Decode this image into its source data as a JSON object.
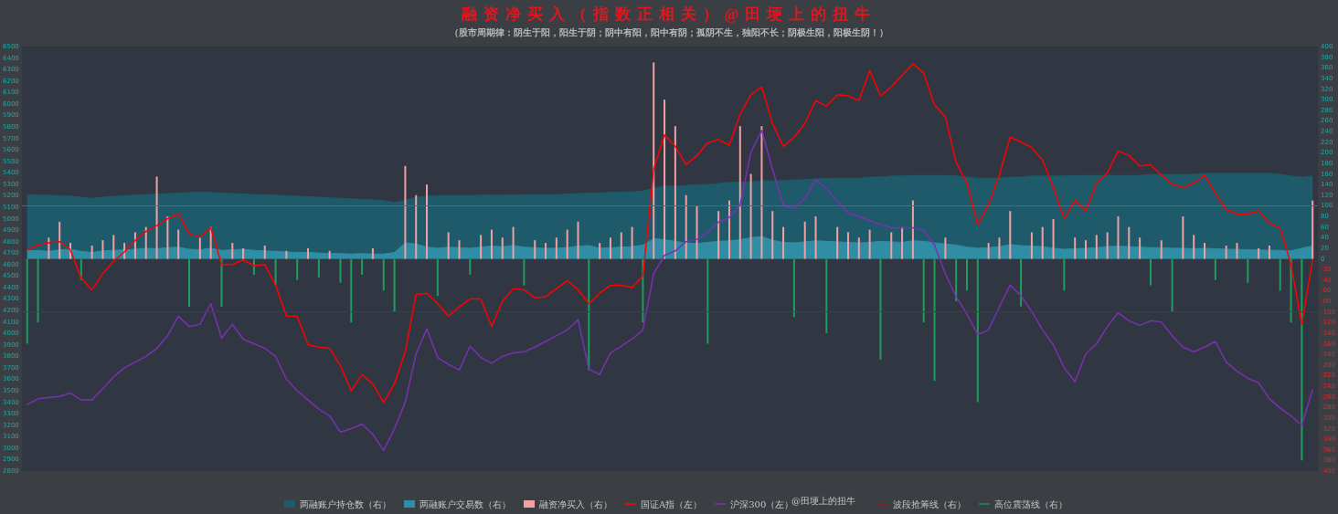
{
  "chart_data": {
    "type": "bar",
    "title": "融资净买入（指数正相关）@田埂上的扭牛",
    "subtitle": "（股市周期律：阴生于阳，阳生于阴；阴中有阳，阳中有阴；孤阴不生，独阳不长；阴极生阳，阳极生阴！）",
    "annotations": [
      "@田埂上的扭牛"
    ],
    "categories": [
      null,
      null,
      null,
      null,
      null,
      null,
      null,
      null,
      null,
      null,
      null,
      null,
      null,
      null,
      null,
      null,
      null,
      null,
      null,
      null,
      null,
      null,
      null,
      null,
      null,
      null,
      null,
      null,
      null,
      null,
      null,
      null,
      null,
      null,
      null,
      null,
      null,
      null,
      null,
      null,
      null,
      null,
      null,
      null,
      null,
      null,
      null,
      null,
      null,
      null,
      null,
      null,
      null,
      null,
      null,
      null,
      null,
      null,
      null,
      null,
      null,
      null,
      null,
      null,
      null,
      null,
      null,
      null,
      null,
      null,
      null,
      null,
      null,
      null,
      null,
      null,
      null,
      null,
      null,
      null,
      null,
      null,
      null,
      null,
      null,
      null,
      null,
      null,
      null,
      null,
      null,
      null,
      null,
      null,
      null,
      null,
      null,
      null,
      null,
      null,
      null,
      null,
      null,
      null,
      null,
      null,
      null,
      null,
      null,
      null,
      null,
      null,
      null,
      null,
      null,
      null,
      null,
      null,
      null,
      null
    ],
    "series": [
      {
        "name": "两融账户持仓数（右）",
        "type": "area",
        "axis": "y2",
        "color": "#1e5a69",
        "values": [
          121,
          120,
          120,
          119,
          118,
          116,
          114,
          116,
          118,
          119,
          120,
          121,
          122,
          123,
          124,
          125,
          125,
          125,
          124,
          123,
          122,
          121,
          121,
          120,
          119,
          118,
          117,
          116,
          115,
          114,
          113,
          112,
          111,
          110,
          106,
          110,
          116,
          118,
          119,
          119,
          119,
          119,
          120,
          120,
          120,
          120,
          121,
          121,
          121,
          121,
          122,
          123,
          124,
          124,
          125,
          126,
          126,
          128,
          133,
          137,
          137,
          138,
          140,
          140,
          142,
          144,
          144,
          145,
          147,
          147,
          147,
          149,
          149,
          151,
          151,
          152,
          152,
          152,
          154,
          154,
          156,
          156,
          157,
          157,
          157,
          157,
          156,
          154,
          152,
          152,
          152,
          154,
          154,
          156,
          156,
          156,
          156,
          157,
          157,
          157,
          157,
          157,
          157,
          157,
          159,
          159,
          159,
          159,
          159,
          161,
          161,
          161,
          161,
          161,
          161,
          161,
          159,
          156,
          154,
          156
        ]
      },
      {
        "name": "两融账户交易数（右）",
        "type": "area",
        "axis": "y2",
        "color": "#2f8da4",
        "values": [
          15,
          16,
          14,
          17,
          18,
          14,
          12,
          15,
          16,
          17,
          18,
          20,
          19,
          21,
          22,
          18,
          17,
          20,
          16,
          17,
          18,
          16,
          15,
          14,
          13,
          12,
          12,
          11,
          10,
          10,
          9,
          10,
          9,
          9,
          12,
          30,
          28,
          22,
          20,
          22,
          21,
          20,
          22,
          24,
          23,
          25,
          22,
          21,
          20,
          20,
          21,
          24,
          25,
          20,
          21,
          22,
          23,
          26,
          38,
          36,
          33,
          30,
          29,
          31,
          33,
          34,
          36,
          40,
          42,
          35,
          31,
          30,
          32,
          34,
          33,
          32,
          31,
          30,
          31,
          33,
          32,
          31,
          34,
          33,
          30,
          28,
          26,
          22,
          20,
          21,
          23,
          27,
          25,
          24,
          23,
          20,
          18,
          19,
          20,
          21,
          23,
          24,
          23,
          22,
          21,
          21,
          20,
          20,
          19,
          20,
          19,
          18,
          18,
          17,
          17,
          16,
          16,
          15,
          20,
          24
        ]
      },
      {
        "name": "融资净买入（右）",
        "axis": "y2",
        "color": "#f2a0a4",
        "values": [
          -160,
          -120,
          40,
          70,
          30,
          -40,
          25,
          35,
          45,
          30,
          50,
          60,
          155,
          80,
          55,
          -90,
          40,
          60,
          -90,
          30,
          20,
          -30,
          25,
          -50,
          15,
          -40,
          20,
          -35,
          15,
          -45,
          -120,
          -30,
          20,
          -60,
          -100,
          175,
          120,
          140,
          -70,
          50,
          35,
          -30,
          45,
          55,
          40,
          60,
          -50,
          35,
          30,
          40,
          55,
          70,
          -210,
          30,
          40,
          50,
          60,
          -120,
          370,
          300,
          250,
          120,
          100,
          -160,
          90,
          110,
          250,
          160,
          250,
          90,
          60,
          -110,
          70,
          80,
          -140,
          60,
          50,
          40,
          55,
          -190,
          50,
          60,
          110,
          -120,
          -230,
          40,
          -80,
          -60,
          -270,
          30,
          40,
          90,
          -90,
          50,
          60,
          75,
          -60,
          40,
          35,
          45,
          50,
          80,
          60,
          40,
          -50,
          35,
          -100,
          80,
          45,
          30,
          -40,
          25,
          30,
          -45,
          20,
          25,
          -60,
          -120,
          -380,
          110
        ],
        "colors": [
          "#1f9d5f",
          "#1f9d5f",
          "#f2a0a4",
          "#f2a0a4",
          "#f2a0a4",
          "#1f9d5f",
          "#f2a0a4",
          "#f2a0a4",
          "#f2a0a4",
          "#f2a0a4",
          "#f2a0a4",
          "#f2a0a4",
          "#f2a0a4",
          "#f2a0a4",
          "#f2a0a4",
          "#1f9d5f",
          "#f2a0a4",
          "#f2a0a4",
          "#1f9d5f",
          "#f2a0a4",
          "#f2a0a4",
          "#1f9d5f",
          "#f2a0a4",
          "#1f9d5f",
          "#f2a0a4",
          "#1f9d5f",
          "#f2a0a4",
          "#1f9d5f",
          "#f2a0a4",
          "#1f9d5f",
          "#1f9d5f",
          "#1f9d5f",
          "#f2a0a4",
          "#1f9d5f",
          "#1f9d5f",
          "#f2a0a4",
          "#f2a0a4",
          "#f2a0a4",
          "#1f9d5f",
          "#f2a0a4",
          "#f2a0a4",
          "#1f9d5f",
          "#f2a0a4",
          "#f2a0a4",
          "#f2a0a4",
          "#f2a0a4",
          "#1f9d5f",
          "#f2a0a4",
          "#f2a0a4",
          "#f2a0a4",
          "#f2a0a4",
          "#f2a0a4",
          "#1f9d5f",
          "#f2a0a4",
          "#f2a0a4",
          "#f2a0a4",
          "#f2a0a4",
          "#1f9d5f",
          "#f2a0a4",
          "#f2a0a4",
          "#f2a0a4",
          "#f2a0a4",
          "#f2a0a4",
          "#1f9d5f",
          "#f2a0a4",
          "#f2a0a4",
          "#f2a0a4",
          "#f2a0a4",
          "#f2a0a4",
          "#f2a0a4",
          "#f2a0a4",
          "#1f9d5f",
          "#f2a0a4",
          "#f2a0a4",
          "#1f9d5f",
          "#f2a0a4",
          "#f2a0a4",
          "#f2a0a4",
          "#f2a0a4",
          "#1f9d5f",
          "#f2a0a4",
          "#f2a0a4",
          "#f2a0a4",
          "#1f9d5f",
          "#1f9d5f",
          "#f2a0a4",
          "#1f9d5f",
          "#1f9d5f",
          "#1f9d5f",
          "#f2a0a4",
          "#f2a0a4",
          "#f2a0a4",
          "#1f9d5f",
          "#f2a0a4",
          "#f2a0a4",
          "#f2a0a4",
          "#1f9d5f",
          "#f2a0a4",
          "#f2a0a4",
          "#f2a0a4",
          "#f2a0a4",
          "#f2a0a4",
          "#f2a0a4",
          "#f2a0a4",
          "#1f9d5f",
          "#f2a0a4",
          "#1f9d5f",
          "#f2a0a4",
          "#f2a0a4",
          "#f2a0a4",
          "#1f9d5f",
          "#f2a0a4",
          "#f2a0a4",
          "#1f9d5f",
          "#f2a0a4",
          "#f2a0a4",
          "#1f9d5f",
          "#1f9d5f",
          "#1f9d5f",
          "#f2a0a4"
        ]
      },
      {
        "name": "国证A指（左）",
        "type": "line",
        "color": "#ff0000",
        "values": [
          4730,
          4770,
          4790,
          4800,
          4730,
          4480,
          4380,
          4520,
          4630,
          4710,
          4810,
          4890,
          4940,
          5000,
          5040,
          4870,
          4840,
          4920,
          4600,
          4600,
          4640,
          4590,
          4600,
          4420,
          4150,
          4150,
          3900,
          3880,
          3870,
          3720,
          3500,
          3640,
          3560,
          3400,
          3560,
          3840,
          4340,
          4350,
          4260,
          4150,
          4230,
          4300,
          4300,
          4060,
          4280,
          4390,
          4380,
          4310,
          4320,
          4390,
          4460,
          4380,
          4260,
          4350,
          4420,
          4420,
          4400,
          4500,
          5430,
          5730,
          5630,
          5470,
          5550,
          5660,
          5690,
          5640,
          5910,
          6080,
          6150,
          5830,
          5630,
          5710,
          5830,
          6030,
          5980,
          6080,
          6070,
          6030,
          6290,
          6070,
          6150,
          6250,
          6350,
          6270,
          5990,
          5890,
          5490,
          5310,
          4950,
          5120,
          5380,
          5710,
          5670,
          5620,
          5510,
          5270,
          5000,
          5160,
          5070,
          5310,
          5400,
          5590,
          5550,
          5460,
          5470,
          5380,
          5300,
          5270,
          5310,
          5380,
          5220,
          5080,
          5040,
          5040,
          5070,
          4960,
          4920,
          4600,
          4080,
          4640
        ]
      },
      {
        "name": "沪深300（左）",
        "type": "line",
        "color": "#7a30b2",
        "values": [
          3380,
          3430,
          3440,
          3450,
          3480,
          3420,
          3420,
          3520,
          3620,
          3700,
          3750,
          3800,
          3870,
          3980,
          4150,
          4060,
          4080,
          4260,
          3960,
          4080,
          3950,
          3910,
          3870,
          3800,
          3600,
          3500,
          3420,
          3340,
          3280,
          3140,
          3170,
          3210,
          3120,
          2980,
          3170,
          3400,
          3820,
          4040,
          3790,
          3730,
          3680,
          3890,
          3790,
          3740,
          3800,
          3830,
          3840,
          3880,
          3930,
          3980,
          4030,
          4120,
          3690,
          3640,
          3830,
          3890,
          3950,
          4030,
          4520,
          4680,
          4720,
          4800,
          4820,
          4880,
          4970,
          5010,
          5120,
          5580,
          5770,
          5430,
          5120,
          5090,
          5180,
          5340,
          5260,
          5150,
          5050,
          5020,
          4980,
          4950,
          4920,
          4920,
          4920,
          4900,
          4770,
          4520,
          4320,
          4170,
          3990,
          4030,
          4230,
          4420,
          4330,
          4190,
          4030,
          3900,
          3700,
          3580,
          3820,
          3910,
          4060,
          4180,
          4110,
          4070,
          4110,
          4100,
          3980,
          3880,
          3840,
          3880,
          3930,
          3750,
          3670,
          3610,
          3570,
          3430,
          3350,
          3280,
          3200,
          3510
        ]
      }
    ],
    "ref_lines": [
      {
        "axis": "y2",
        "value": -100,
        "label": "波段抢筹线（右）",
        "color": "#8e1d26"
      },
      {
        "axis": "y2",
        "value": 100,
        "label": "高位震荡线（右）",
        "color": "#1b8a5a"
      }
    ],
    "ylim": [
      2800,
      6500
    ],
    "yticks": [
      2800,
      2900,
      3000,
      3100,
      3200,
      3300,
      3400,
      3500,
      3600,
      3700,
      3800,
      3900,
      4000,
      4100,
      4200,
      4300,
      4400,
      4500,
      4600,
      4700,
      4800,
      4900,
      5000,
      5100,
      5200,
      5300,
      5400,
      5500,
      5600,
      5700,
      5800,
      5900,
      6000,
      6100,
      6200,
      6300,
      6400,
      6500
    ],
    "y2lim": [
      -400,
      400
    ],
    "y2ticks": [
      -400,
      -380,
      -360,
      -340,
      -320,
      -300,
      -280,
      -260,
      -240,
      -220,
      -200,
      -180,
      -160,
      -140,
      -120,
      -100,
      -80,
      -60,
      -40,
      -20,
      0,
      20,
      40,
      60,
      80,
      100,
      120,
      140,
      160,
      180,
      200,
      220,
      240,
      260,
      280,
      300,
      320,
      340,
      360,
      380,
      400
    ],
    "legend": "bottom",
    "grid": false,
    "marker": "none"
  }
}
